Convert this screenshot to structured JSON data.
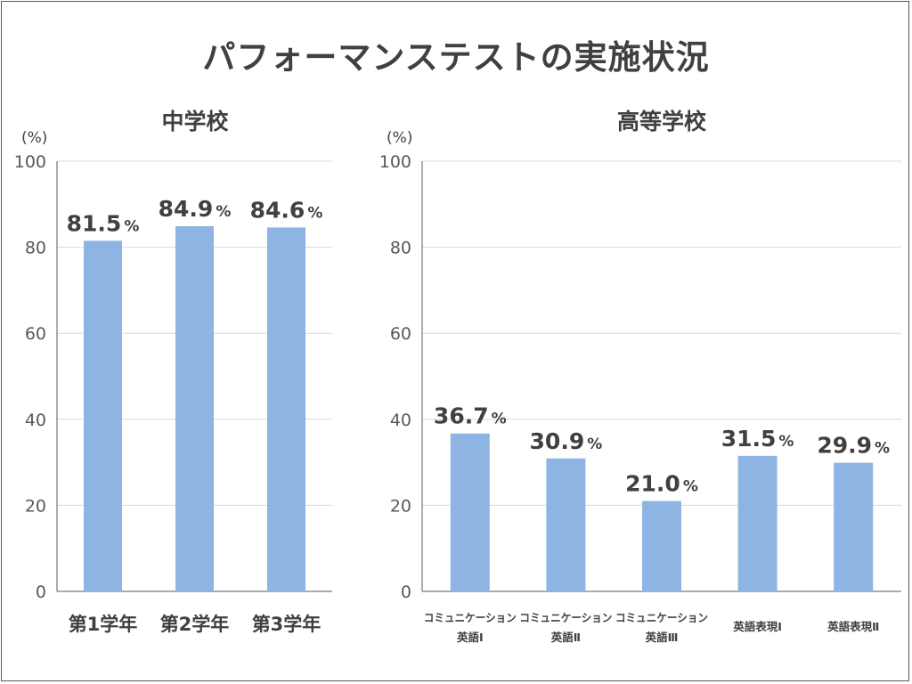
{
  "title": "パフォーマンステストの実施状況",
  "chart_data": [
    {
      "type": "bar",
      "title": "中学校",
      "unit_label": "(%)",
      "ylim": [
        0,
        100
      ],
      "yticks": [
        0,
        20,
        40,
        60,
        80,
        100
      ],
      "grid": true,
      "bar_color": "#8eb4e3",
      "categories": [
        [
          "第1学年"
        ],
        [
          "第2学年"
        ],
        [
          "第3学年"
        ]
      ],
      "values": [
        81.5,
        84.9,
        84.6
      ],
      "value_labels": [
        "81.5",
        "84.9",
        "84.6"
      ],
      "value_suffix": "%"
    },
    {
      "type": "bar",
      "title": "高等学校",
      "unit_label": "(%)",
      "ylim": [
        0,
        100
      ],
      "yticks": [
        0,
        20,
        40,
        60,
        80,
        100
      ],
      "grid": true,
      "bar_color": "#8eb4e3",
      "categories": [
        [
          "コミュニケーション",
          "英語Ⅰ"
        ],
        [
          "コミュニケーション",
          "英語Ⅱ"
        ],
        [
          "コミュニケーション",
          "英語Ⅲ"
        ],
        [
          "英語表現Ⅰ"
        ],
        [
          "英語表現Ⅱ"
        ]
      ],
      "values": [
        36.7,
        30.9,
        21.0,
        31.5,
        29.9
      ],
      "value_labels": [
        "36.7",
        "30.9",
        "21.0",
        "31.5",
        "29.9"
      ],
      "value_suffix": "%"
    }
  ]
}
